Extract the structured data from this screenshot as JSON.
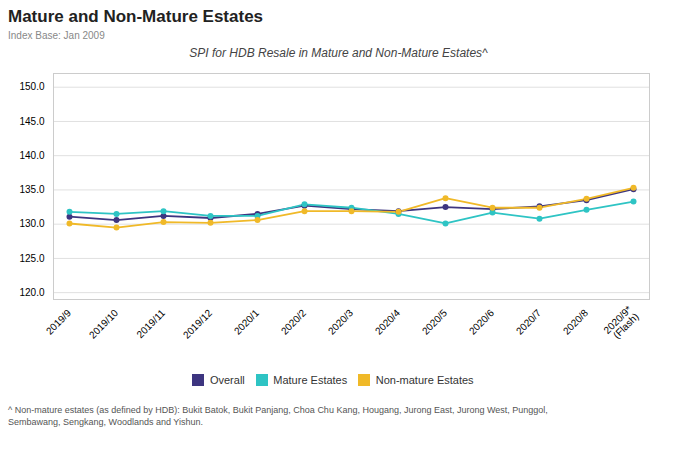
{
  "chart_data": {
    "type": "line",
    "title": "Mature and Non-Mature Estates",
    "subtitle": "Index Base: Jan 2009",
    "annotations": [
      "SPI for HDB Resale in Mature and Non-Mature Estates^",
      "^ Non-mature estates (as defined by HDB): Bukit Batok, Bukit Panjang, Choa Chu Kang, Hougang, Jurong East, Jurong West, Punggol,\nSembawang, Sengkang, Woodlands and Yishun."
    ],
    "categories": [
      "2019/9",
      "2019/10",
      "2019/11",
      "2019/12",
      "2020/1",
      "2020/2",
      "2020/3",
      "2020/4",
      "2020/5",
      "2020/6",
      "2020/7",
      "2020/8",
      "2020/9*\n(Flash)"
    ],
    "series": [
      {
        "name": "Overall",
        "color": "#3d3580",
        "values": [
          131.1,
          130.6,
          131.2,
          130.9,
          131.5,
          132.7,
          132.2,
          131.9,
          132.5,
          132.2,
          132.6,
          133.5,
          135.1
        ]
      },
      {
        "name": "Mature Estates",
        "color": "#2ec4c4",
        "values": [
          131.8,
          131.5,
          131.9,
          131.2,
          131.2,
          132.9,
          132.4,
          131.5,
          130.1,
          131.7,
          130.8,
          132.1,
          133.3
        ]
      },
      {
        "name": "Non-mature Estates",
        "color": "#f0b928",
        "values": [
          130.1,
          129.5,
          130.3,
          130.2,
          130.6,
          131.9,
          131.9,
          131.8,
          133.8,
          132.4,
          132.4,
          133.7,
          135.3
        ]
      }
    ],
    "ylim": [
      119.0,
      152.0
    ],
    "yticks": [
      {
        "value": 120,
        "label": "120.0"
      },
      {
        "value": 125,
        "label": "125.0"
      },
      {
        "value": 130,
        "label": "130.0"
      },
      {
        "value": 135,
        "label": "135.0"
      },
      {
        "value": 140,
        "label": "140.0"
      },
      {
        "value": 145,
        "label": "145.0"
      },
      {
        "value": 150,
        "label": "150.0"
      }
    ],
    "grid": true,
    "legend": "bottom",
    "marker": "circle"
  }
}
